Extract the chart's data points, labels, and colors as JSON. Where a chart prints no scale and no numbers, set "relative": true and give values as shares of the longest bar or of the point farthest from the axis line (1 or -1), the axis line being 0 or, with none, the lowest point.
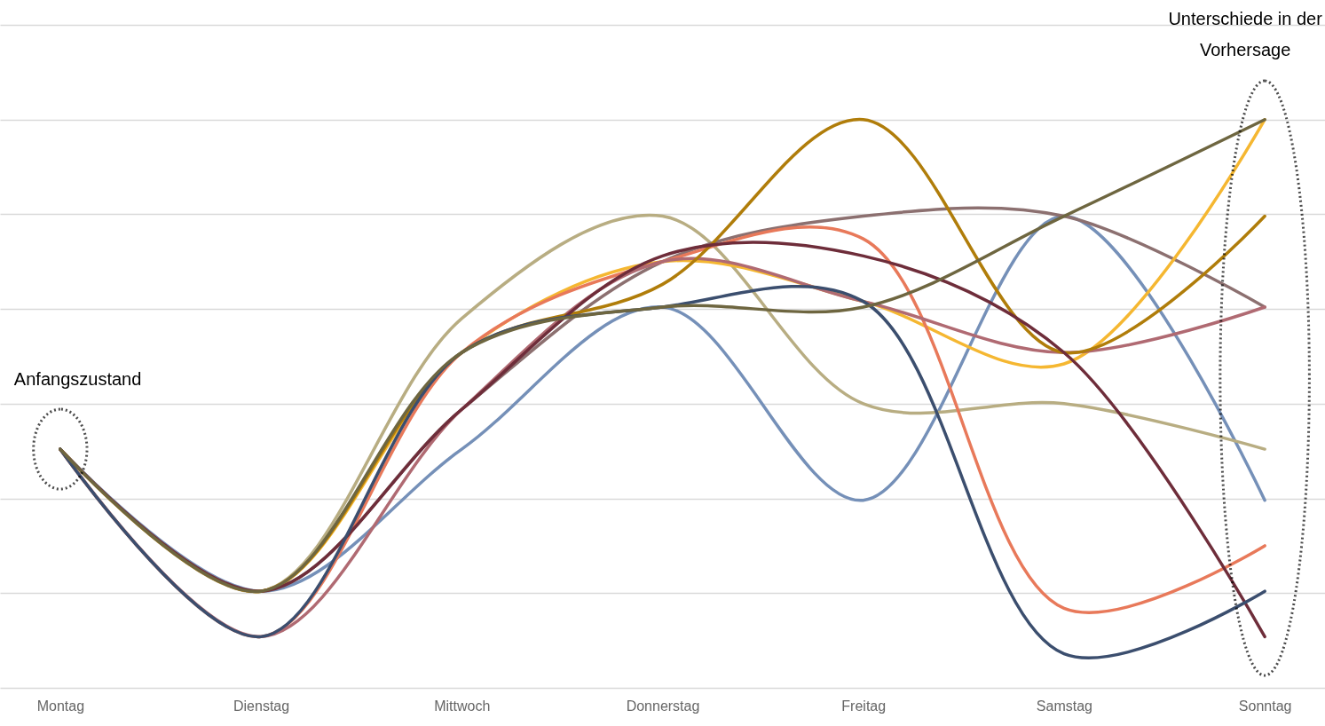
{
  "chart_data": {
    "type": "line",
    "relative": true,
    "grid": "y",
    "legend": false,
    "marker": "none",
    "line_style": "solid",
    "categories": [
      "Montag",
      "Dienstag",
      "Mittwoch",
      "Donnerstag",
      "Freitag",
      "Samstag",
      "Sonntag"
    ],
    "series": [
      {
        "color": "#7590b8",
        "values": [
          0.42,
          0.17,
          0.42,
          0.67,
          0.33,
          0.83,
          0.33
        ]
      },
      {
        "color": "#b8ad82",
        "values": [
          0.42,
          0.17,
          0.65,
          0.83,
          0.5,
          0.5,
          0.42
        ]
      },
      {
        "color": "#8c7070",
        "values": [
          0.42,
          0.17,
          0.49,
          0.75,
          0.83,
          0.83,
          0.67
        ]
      },
      {
        "color": "#f5b731",
        "values": [
          0.42,
          0.17,
          0.59,
          0.75,
          0.68,
          0.57,
          1
        ]
      },
      {
        "color": "#e8795a",
        "values": [
          0.42,
          0.09,
          0.59,
          0.75,
          0.79,
          0.14,
          0.25
        ]
      },
      {
        "color": "#b06a72",
        "values": [
          0.42,
          0.09,
          0.49,
          0.75,
          0.68,
          0.59,
          0.67
        ]
      },
      {
        "color": "#b07d0a",
        "values": [
          0.42,
          0.17,
          0.59,
          0.71,
          1,
          0.59,
          0.83
        ]
      },
      {
        "color": "#6e2d3a",
        "values": [
          0.42,
          0.17,
          0.49,
          0.76,
          0.76,
          0.59,
          0.09
        ]
      },
      {
        "color": "#3b4e6e",
        "values": [
          0.42,
          0.09,
          0.59,
          0.67,
          0.68,
          0.06,
          0.17
        ]
      },
      {
        "color": "#6e6640",
        "values": [
          0.42,
          0.17,
          0.59,
          0.67,
          0.67,
          0.83,
          1
        ]
      }
    ],
    "annotations": [
      "Anfangszustand",
      "Unterschiede in der Vorhersage"
    ]
  }
}
